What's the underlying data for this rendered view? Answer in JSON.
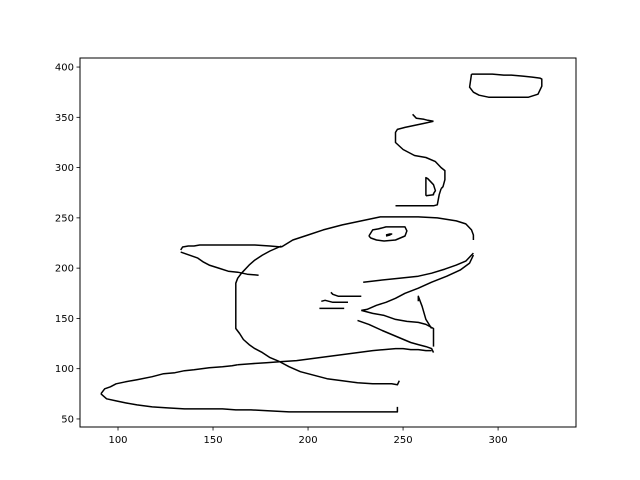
{
  "chart_data": {
    "type": "line",
    "title": "",
    "xlabel": "",
    "ylabel": "",
    "xlim": [
      80,
      341
    ],
    "ylim": [
      42,
      409
    ],
    "grid": false,
    "legend": "none",
    "x_ticks": [
      100,
      150,
      200,
      250,
      300
    ],
    "y_ticks": [
      50,
      100,
      150,
      200,
      250,
      300,
      350,
      400
    ],
    "line_color": "#000000",
    "series": [
      {
        "x": [
          133,
          134,
          137,
          140,
          143,
          146,
          150,
          155,
          160,
          165,
          168,
          170,
          172,
          180,
          186
        ],
        "y": [
          218,
          221,
          222,
          222,
          223,
          223,
          223,
          223,
          223,
          223,
          223,
          223,
          223,
          222,
          221
        ]
      },
      {
        "x": [
          133,
          136,
          139,
          142,
          145,
          148,
          153,
          158,
          163,
          168,
          174
        ],
        "y": [
          216,
          214,
          212,
          210,
          206,
          203,
          200,
          197,
          196,
          194,
          193
        ]
      },
      {
        "x": [
          186,
          180,
          176,
          172,
          169,
          165,
          163,
          162,
          162,
          162,
          162,
          162,
          162,
          164,
          166,
          169,
          172,
          176,
          180,
          185,
          190,
          196,
          202,
          210,
          218,
          226,
          234,
          240,
          244,
          247,
          248
        ],
        "y": [
          222,
          217,
          213,
          208,
          203,
          195,
          190,
          185,
          175,
          170,
          160,
          150,
          140,
          135,
          129,
          124,
          120,
          116,
          111,
          107,
          102,
          97,
          94,
          90,
          88,
          86,
          85,
          85,
          85,
          84,
          88
        ]
      },
      {
        "x": [
          186,
          192,
          200,
          208,
          218,
          228,
          238,
          248,
          258,
          268,
          278,
          283,
          286,
          287,
          287
        ],
        "y": [
          221,
          228,
          233,
          238,
          243,
          247,
          251,
          251,
          251,
          250,
          247,
          244,
          238,
          233,
          228
        ]
      },
      {
        "x": [
          287,
          283,
          278,
          272,
          265,
          258,
          248,
          238,
          229
        ],
        "y": [
          215,
          207,
          203,
          199,
          195,
          192,
          190,
          188,
          186
        ]
      },
      {
        "x": [
          287,
          285,
          280,
          273,
          265,
          258,
          251,
          246,
          241,
          236,
          231,
          228
        ],
        "y": [
          213,
          205,
          198,
          192,
          186,
          180,
          175,
          170,
          166,
          163,
          159,
          158
        ]
      },
      {
        "x": [
          228,
          234,
          240,
          246,
          252,
          258,
          262,
          266,
          266,
          266
        ],
        "y": [
          158,
          155,
          153,
          149,
          147,
          146,
          144,
          140,
          138,
          122
        ]
      },
      {
        "x": [
          266,
          265,
          262,
          258,
          254,
          249,
          244,
          239,
          232,
          226
        ],
        "y": [
          116,
          120,
          122,
          124,
          126,
          130,
          134,
          138,
          144,
          148
        ]
      },
      {
        "x": [
          258,
          258,
          260,
          262,
          265
        ],
        "y": [
          167,
          172,
          162,
          149,
          140
        ]
      },
      {
        "x": [
          212,
          213,
          216,
          228
        ],
        "y": [
          176,
          174,
          172,
          172
        ]
      },
      {
        "x": [
          207,
          209,
          213,
          221
        ],
        "y": [
          167,
          168,
          166,
          166
        ]
      },
      {
        "x": [
          206,
          212,
          219
        ],
        "y": [
          160,
          160,
          160
        ]
      },
      {
        "x": [
          232,
          234,
          237,
          241,
          247,
          251,
          252,
          251,
          246,
          240,
          236,
          233,
          232,
          232
        ],
        "y": [
          232,
          238,
          239,
          241,
          241,
          241,
          237,
          232,
          228,
          227,
          228,
          230,
          232,
          232
        ]
      },
      {
        "x": [
          241,
          243,
          244,
          243,
          241
        ],
        "y": [
          233,
          234,
          234,
          233,
          232
        ]
      },
      {
        "x": [
          262,
          266,
          266,
          267,
          266,
          263,
          262,
          262,
          262
        ],
        "y": [
          272,
          273,
          274,
          277,
          283,
          289,
          290,
          284,
          272
        ]
      },
      {
        "x": [
          255,
          257,
          261,
          263,
          266
        ],
        "y": [
          353,
          349,
          348,
          347,
          346
        ]
      },
      {
        "x": [
          266,
          261,
          256,
          251,
          247,
          246,
          246,
          250,
          256,
          262,
          267,
          270,
          272,
          272,
          271,
          270
        ],
        "y": [
          346,
          344,
          342,
          340,
          338,
          335,
          325,
          318,
          312,
          310,
          306,
          300,
          297,
          288,
          281,
          279
        ]
      },
      {
        "x": [
          270,
          269,
          268,
          266,
          261,
          255,
          250,
          246
        ],
        "y": [
          279,
          273,
          263,
          262,
          262,
          262,
          262,
          262
        ]
      },
      {
        "x": [
          286,
          287,
          291,
          297,
          303,
          307,
          313,
          318,
          322,
          323,
          323,
          321,
          316,
          306,
          295,
          290,
          287,
          285,
          286
        ],
        "y": [
          393,
          393,
          393,
          393,
          392,
          392,
          391,
          390,
          389,
          388,
          381,
          373,
          370,
          370,
          370,
          372,
          375,
          380,
          393
        ]
      },
      {
        "x": [
          91,
          94,
          99,
          104,
          110,
          118,
          126,
          135,
          145,
          155,
          162,
          170,
          180,
          190,
          200,
          210,
          220,
          228,
          234,
          240,
          244,
          247,
          247
        ],
        "y": [
          75,
          70,
          68,
          66,
          64,
          62,
          61,
          60,
          60,
          60,
          59,
          59,
          58,
          57,
          57,
          57,
          57,
          57,
          57,
          57,
          57,
          57,
          62
        ]
      },
      {
        "x": [
          91,
          93,
          96,
          99,
          104,
          110,
          118,
          124,
          130,
          135,
          140,
          148,
          155,
          160,
          163
        ],
        "y": [
          75,
          80,
          82,
          85,
          87,
          89,
          92,
          95,
          96,
          98,
          99,
          101,
          102,
          103,
          104
        ]
      },
      {
        "x": [
          163,
          170,
          178,
          186,
          194,
          202,
          210,
          218,
          226,
          234,
          240,
          246,
          250,
          254,
          258,
          262,
          265
        ],
        "y": [
          104,
          105,
          106,
          107,
          108,
          110,
          112,
          114,
          116,
          118,
          119,
          120,
          120,
          119,
          119,
          118,
          118
        ]
      }
    ]
  }
}
